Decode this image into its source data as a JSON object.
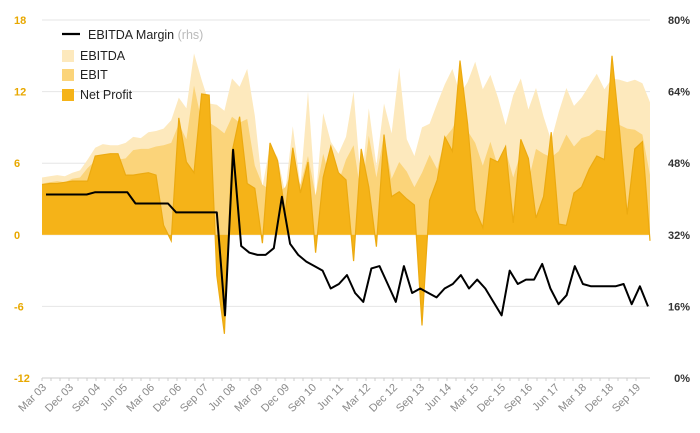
{
  "chart_data": {
    "type": "area",
    "left_axis": {
      "ylim": [
        -12,
        18
      ],
      "ticks": [
        "18",
        "12",
        "6",
        "0",
        "-6",
        "-12"
      ]
    },
    "right_axis": {
      "ylim": [
        0,
        80
      ],
      "unit": "%",
      "ticks": [
        "80%",
        "64%",
        "48%",
        "32%",
        "16%",
        "0%"
      ]
    },
    "x_tick_labels": [
      "Mar 03",
      "Dec 03",
      "Sep 04",
      "Jun 05",
      "Mar 06",
      "Dec 06",
      "Sep 07",
      "Jun 08",
      "Mar 09",
      "Dec 09",
      "Sep 10",
      "Jun 11",
      "Mar 12",
      "Dec 12",
      "Sep 13",
      "Jun 14",
      "Mar 15",
      "Dec 15",
      "Sep 16",
      "Jun 17",
      "Mar 18",
      "Dec 18",
      "Sep 19"
    ],
    "legend": {
      "placement": "top-left",
      "items": [
        {
          "key": "margin",
          "label": "EBITDA Margin",
          "suffix": "(rhs)"
        },
        {
          "key": "ebitda",
          "label": "EBITDA"
        },
        {
          "key": "ebit",
          "label": "EBIT"
        },
        {
          "key": "net",
          "label": "Net Profit"
        }
      ]
    },
    "colors": {
      "ebitda": "#fde9bd",
      "ebit": "#fbd47a",
      "net": "#f5b318",
      "margin": "#000000",
      "ltick": "#e8a800",
      "grid": "#e6e6e6"
    },
    "series": [
      {
        "key": "ebitda",
        "axis": "left",
        "values": [
          4.8,
          4.9,
          5.0,
          4.9,
          5.2,
          5.4,
          6.3,
          7.3,
          7.6,
          7.5,
          7.5,
          7.7,
          8.2,
          8.1,
          8.6,
          8.7,
          8.9,
          9.6,
          11.5,
          10.6,
          15.2,
          13.0,
          11.0,
          10.9,
          10.4,
          13.1,
          12.4,
          13.9,
          10.0,
          4.0,
          7.5,
          6.5,
          3.5,
          9.1,
          4.1,
          12.0,
          3.0,
          10.2,
          7.8,
          6.8,
          8.2,
          12.0,
          4.0,
          10.6,
          5.8,
          11.0,
          8.5,
          14.0,
          8.0,
          6.6,
          9.0,
          9.3,
          11.0,
          12.6,
          13.9,
          11.8,
          12.8,
          14.5,
          12.2,
          13.4,
          11.5,
          9.2,
          11.7,
          13.1,
          10.5,
          12.3,
          9.9,
          7.9,
          10.3,
          12.3,
          10.8,
          11.5,
          12.5,
          13.5,
          12.2,
          13.1,
          13.0,
          12.8,
          13.0,
          12.7,
          11.1
        ]
      },
      {
        "key": "ebit",
        "axis": "left",
        "values": [
          4.3,
          4.4,
          4.5,
          4.4,
          4.7,
          4.8,
          5.6,
          6.2,
          6.5,
          6.4,
          6.3,
          6.4,
          7.1,
          7.2,
          7.2,
          7.4,
          7.5,
          7.7,
          9.3,
          8.0,
          12.5,
          9.5,
          9.4,
          9.0,
          8.5,
          9.9,
          9.4,
          9.7,
          5.8,
          4.2,
          3.8,
          3.5,
          4.0,
          5.5,
          4.2,
          6.6,
          3.3,
          6.8,
          4.5,
          4.4,
          6.3,
          7.5,
          3.2,
          8.3,
          4.8,
          8.4,
          4.7,
          6.1,
          5.3,
          4.0,
          5.2,
          6.7,
          5.5,
          8.1,
          8.9,
          10.3,
          8.7,
          7.7,
          5.8,
          7.8,
          5.7,
          7.1,
          4.8,
          6.9,
          4.5,
          7.2,
          6.8,
          6.5,
          7.0,
          8.4,
          7.4,
          8.1,
          8.3,
          8.8,
          8.7,
          8.7,
          9.2,
          8.9,
          8.8,
          8.4,
          5.0
        ]
      },
      {
        "key": "net",
        "axis": "left",
        "values": [
          4.2,
          4.3,
          4.3,
          4.4,
          4.5,
          4.5,
          4.5,
          6.6,
          6.7,
          6.8,
          6.8,
          5.0,
          5.0,
          5.1,
          5.2,
          5.0,
          0.8,
          -0.5,
          9.8,
          6.1,
          5.2,
          11.8,
          11.7,
          -3.4,
          -8.3,
          6.9,
          9.9,
          4.3,
          3.9,
          -0.7,
          7.7,
          6.2,
          1.8,
          7.3,
          3.5,
          6.1,
          -1.5,
          4.8,
          7.4,
          5.2,
          4.6,
          -2.2,
          7.2,
          4.0,
          -1.0,
          8.4,
          3.2,
          3.6,
          3.0,
          2.5,
          -7.6,
          2.9,
          4.6,
          8.2,
          7.0,
          14.6,
          9.3,
          2.1,
          0.6,
          6.4,
          6.1,
          7.4,
          1.0,
          8.0,
          6.4,
          1.4,
          3.2,
          8.6,
          0.9,
          0.8,
          3.5,
          4.0,
          5.5,
          6.6,
          6.3,
          15.0,
          8.7,
          1.7,
          7.2,
          7.8,
          -0.5
        ]
      },
      {
        "key": "margin",
        "axis": "right",
        "name": "EBITDA Margin",
        "values": [
          41.0,
          41.0,
          41.0,
          41.0,
          41.0,
          41.0,
          41.5,
          41.5,
          41.5,
          41.5,
          41.5,
          39.0,
          39.0,
          39.0,
          39.0,
          39.0,
          37.0,
          37.0,
          37.0,
          37.0,
          37.0,
          37.0,
          14.0,
          51.0,
          29.5,
          28.0,
          27.5,
          27.5,
          29.0,
          40.5,
          30.0,
          27.5,
          26.0,
          25.0,
          24.0,
          20.0,
          21.0,
          23.0,
          19.0,
          17.0,
          24.5,
          25.0,
          21.0,
          17.0,
          25.0,
          19.0,
          20.0,
          19.0,
          18.0,
          20.0,
          21.0,
          23.0,
          20.0,
          22.0,
          20.0,
          17.0,
          14.0,
          24.0,
          21.0,
          22.0,
          22.0,
          25.5,
          20.0,
          16.5,
          18.5,
          25.0,
          21.0,
          20.5,
          20.5,
          20.5,
          20.5,
          21.0,
          16.5,
          20.5,
          16.0
        ]
      }
    ]
  }
}
